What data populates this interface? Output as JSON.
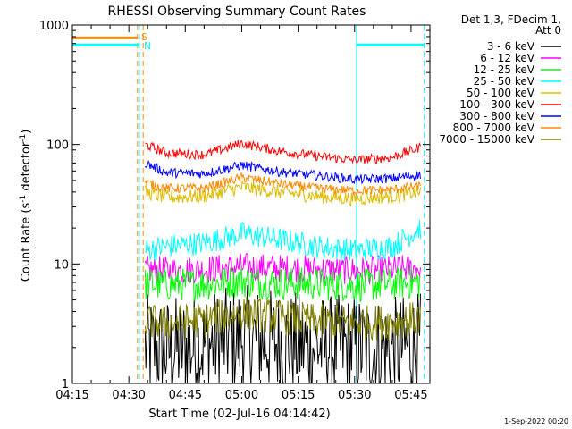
{
  "chart_data": {
    "type": "line",
    "title": "RHESSI Observing Summary Count Rates",
    "xlabel": "Start Time (02-Jul-16 04:14:42)",
    "ylabel_main": "Count Rate (s",
    "ylabel_sup1": "-1",
    "ylabel_mid": " detector",
    "ylabel_sup2": "-1",
    "ylabel_end": ")",
    "yscale": "log",
    "xlim": [
      0,
      95
    ],
    "ylim": [
      1,
      1000
    ],
    "x_ticks": [
      {
        "x": 0,
        "label": "04:15"
      },
      {
        "x": 15,
        "label": "04:30"
      },
      {
        "x": 30,
        "label": "04:45"
      },
      {
        "x": 45,
        "label": "05:00"
      },
      {
        "x": 60,
        "label": "05:15"
      },
      {
        "x": 75,
        "label": "05:30"
      },
      {
        "x": 90,
        "label": "05:45"
      }
    ],
    "y_ticks": [
      {
        "y": 1,
        "label": "1"
      },
      {
        "y": 10,
        "label": "10"
      },
      {
        "y": 100,
        "label": "100"
      },
      {
        "y": 1000,
        "label": "1000"
      }
    ],
    "legend_header": [
      "Det 1,3, FDecim 1,",
      "Att 0"
    ],
    "legend_placement": "right",
    "series": [
      {
        "name": "3 - 6 keV",
        "color": "#000000",
        "x": [
          19.3,
          25,
          35,
          45,
          55,
          65,
          75,
          85,
          92.5
        ],
        "y": [
          2.0,
          1.9,
          2.1,
          2.4,
          2.2,
          2.0,
          2.0,
          1.9,
          2.1
        ]
      },
      {
        "name": "6 - 12 keV",
        "color": "#ff00ff",
        "x": [
          19.3,
          25,
          35,
          45,
          55,
          65,
          75,
          85,
          92.5
        ],
        "y": [
          9.0,
          8.8,
          9.0,
          9.5,
          9.2,
          9.0,
          8.8,
          9.0,
          9.2
        ]
      },
      {
        "name": "12 - 25 keV",
        "color": "#00ff00",
        "x": [
          19.3,
          25,
          35,
          45,
          55,
          65,
          75,
          85,
          92.5
        ],
        "y": [
          6.8,
          6.7,
          6.8,
          7.2,
          6.9,
          6.8,
          6.6,
          6.8,
          7.0
        ]
      },
      {
        "name": "25 - 50 keV",
        "color": "#00ffff",
        "x": [
          19.3,
          25,
          35,
          45,
          55,
          65,
          75,
          85,
          92.5
        ],
        "y": [
          13,
          14,
          15,
          18,
          16,
          14,
          13,
          14,
          20
        ]
      },
      {
        "name": "50 - 100 keV",
        "color": "#ddbb00",
        "x": [
          19.3,
          25,
          35,
          45,
          55,
          65,
          75,
          85,
          92.5
        ],
        "y": [
          40,
          36,
          37,
          44,
          40,
          37,
          35,
          37,
          40
        ]
      },
      {
        "name": "100 - 300 keV",
        "color": "#ff0000",
        "x": [
          19.3,
          25,
          35,
          45,
          55,
          65,
          75,
          85,
          92.5
        ],
        "y": [
          100,
          85,
          82,
          102,
          88,
          80,
          74,
          78,
          95
        ]
      },
      {
        "name": "300 - 800 keV",
        "color": "#0000ff",
        "x": [
          19.3,
          25,
          35,
          45,
          55,
          65,
          75,
          85,
          92.5
        ],
        "y": [
          70,
          58,
          57,
          67,
          59,
          55,
          51,
          52,
          56
        ]
      },
      {
        "name": "800 - 7000 keV",
        "color": "#ff8800",
        "x": [
          19.3,
          25,
          35,
          45,
          55,
          65,
          75,
          85,
          92.5
        ],
        "y": [
          48,
          43,
          43,
          53,
          47,
          43,
          41,
          42,
          45
        ]
      },
      {
        "name": "7000 - 15000 keV",
        "color": "#808000",
        "x": [
          19.3,
          25,
          35,
          45,
          55,
          65,
          75,
          85,
          92.5
        ],
        "y": [
          3.3,
          3.2,
          3.4,
          3.9,
          3.6,
          3.3,
          3.2,
          3.3,
          3.5
        ]
      }
    ],
    "annotations": [
      {
        "text": "S",
        "color": "#ff8800",
        "x": 18.3,
        "y": 800
      },
      {
        "text": "N",
        "color": "#00ffff",
        "x": 19.0,
        "y": 670
      }
    ],
    "attenuator_bars": [
      {
        "color": "#ff8800",
        "x": [
          0,
          17.3
        ],
        "y": 780
      },
      {
        "color": "#00ffff",
        "x": [
          0,
          17.8
        ],
        "y": 680
      },
      {
        "color": "#00ffff",
        "x": [
          75.5,
          93.5
        ],
        "y": 680
      }
    ],
    "vertical_lines": [
      {
        "x": 17.3,
        "color": "#ff8800",
        "style": "dashed"
      },
      {
        "x": 17.8,
        "color": "#00ffff",
        "style": "dashed"
      },
      {
        "x": 18.8,
        "color": "#ff8800",
        "style": "dashed"
      },
      {
        "x": 75.5,
        "color": "#00ffff",
        "style": "solid"
      },
      {
        "x": 93.5,
        "color": "#00ffff",
        "style": "dashed"
      }
    ],
    "footer_timestamp": "1-Sep-2022 00:20"
  }
}
